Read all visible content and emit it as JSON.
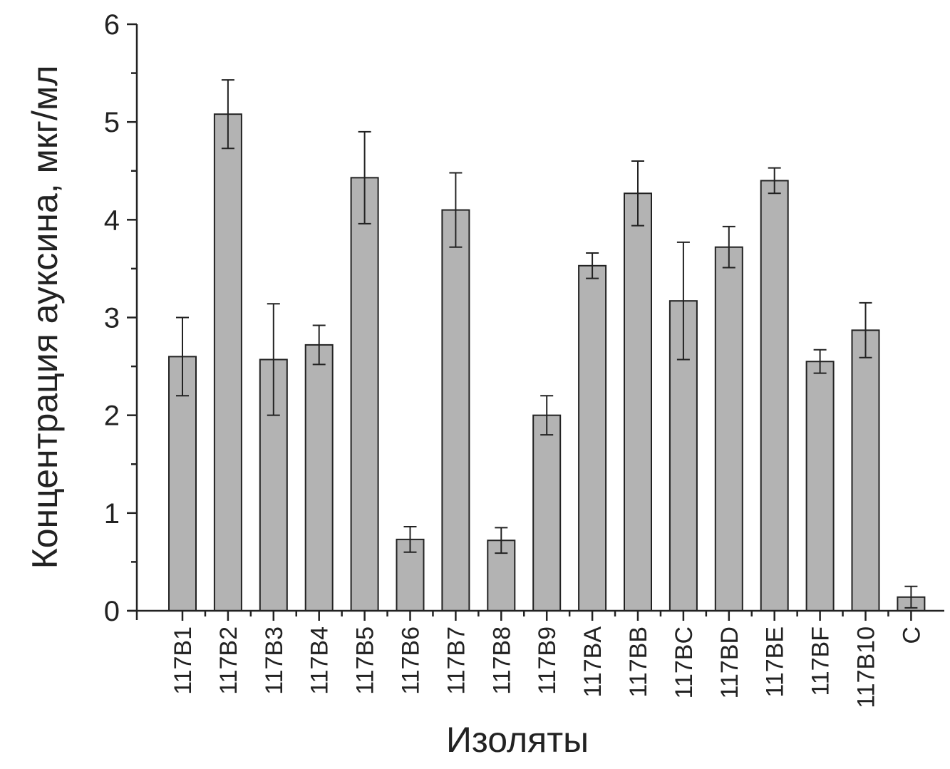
{
  "chart_data": {
    "type": "bar",
    "xlabel": "Изоляты",
    "ylabel": "Концентрация ауксина, мкг/мл",
    "ylim": [
      0,
      6
    ],
    "yticks": [
      "0",
      "1",
      "2",
      "3",
      "4",
      "5",
      "6"
    ],
    "grid": false,
    "categories": [
      "117B1",
      "117B2",
      "117B3",
      "117B4",
      "117B5",
      "117B6",
      "117B7",
      "117B8",
      "117B9",
      "117BA",
      "117BB",
      "117BC",
      "117BD",
      "117BE",
      "117BF",
      "117B10",
      "C"
    ],
    "values": [
      2.6,
      5.08,
      2.57,
      2.72,
      4.43,
      0.73,
      4.1,
      0.72,
      2.0,
      3.53,
      4.27,
      3.17,
      3.72,
      4.4,
      2.55,
      2.87,
      0.14
    ],
    "errors": [
      0.4,
      0.35,
      0.57,
      0.2,
      0.47,
      0.13,
      0.38,
      0.13,
      0.2,
      0.13,
      0.33,
      0.6,
      0.21,
      0.13,
      0.12,
      0.28,
      0.11
    ],
    "colors": {
      "bar": "#b3b3b3",
      "outline": "#222222"
    }
  }
}
